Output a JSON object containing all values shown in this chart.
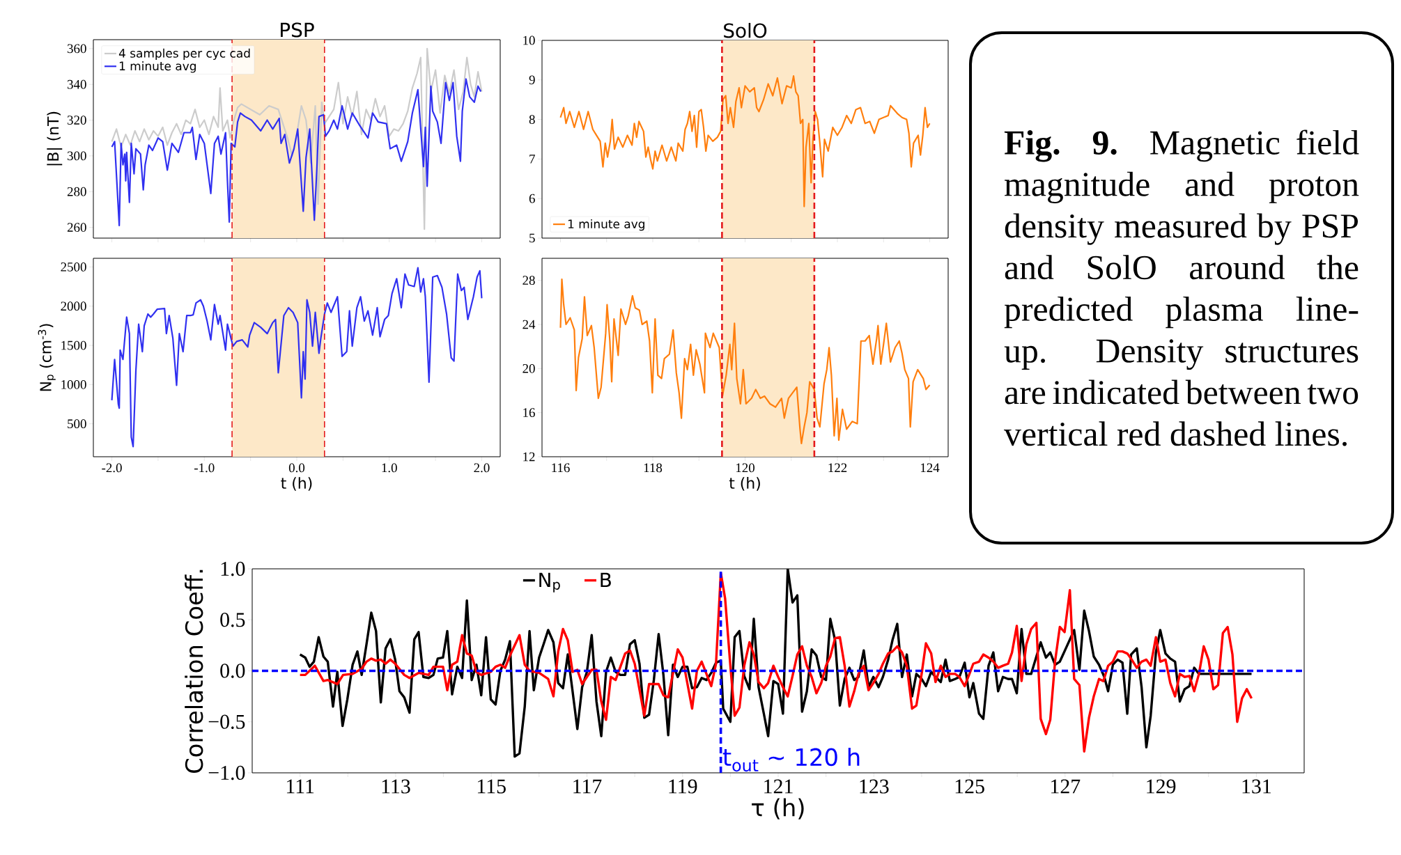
{
  "chart_data": [
    {
      "type": "line",
      "title": "PSP",
      "ylabel": "|B| (nT)",
      "xlim": [
        -2.2,
        2.2
      ],
      "ylim": [
        254,
        365
      ],
      "xticks": [
        -2,
        -1.5,
        -1,
        -0.5,
        0,
        0.5,
        1,
        1.5,
        2
      ],
      "yticks": [
        260,
        280,
        300,
        320,
        340,
        360
      ],
      "tick_labels": "y",
      "legend": "top left",
      "bands": [
        {
          "axis": "x",
          "from": -0.7,
          "to": 0.3,
          "color": "#fde8c8"
        }
      ],
      "ref_lines": [
        {
          "axis": "x",
          "value": -0.7,
          "color": "#e41a1c",
          "line_style": "dashed"
        },
        {
          "axis": "x",
          "value": 0.3,
          "color": "#e41a1c",
          "line_style": "dashed"
        }
      ],
      "series": [
        {
          "name": "4 samples per cyc cad",
          "color": "#cccccc",
          "x": [
            -2.0,
            -1.95,
            -1.9,
            -1.85,
            -1.8,
            -1.75,
            -1.7,
            -1.65,
            -1.6,
            -1.55,
            -1.5,
            -1.45,
            -1.4,
            -1.35,
            -1.3,
            -1.25,
            -1.2,
            -1.15,
            -1.1,
            -1.05,
            -1.0,
            -0.95,
            -0.9,
            -0.85,
            -0.83,
            -0.8,
            -0.75,
            -0.72,
            -0.68,
            -0.64,
            -0.6,
            -0.5,
            -0.4,
            -0.3,
            -0.2,
            -0.1,
            -0.05,
            0.0,
            0.05,
            0.1,
            0.15,
            0.2,
            0.23,
            0.27,
            0.3,
            0.35,
            0.4,
            0.45,
            0.5,
            0.55,
            0.6,
            0.65,
            0.7,
            0.75,
            0.8,
            0.85,
            0.9,
            0.95,
            1.0,
            1.05,
            1.1,
            1.15,
            1.2,
            1.25,
            1.3,
            1.34,
            1.38,
            1.41,
            1.45,
            1.5,
            1.55,
            1.6,
            1.65,
            1.7,
            1.75,
            1.8,
            1.84,
            1.88,
            1.92,
            1.96,
            2.0
          ],
          "values": [
            308,
            315,
            305,
            312,
            306,
            314,
            308,
            315,
            309,
            314,
            311,
            316,
            306,
            313,
            318,
            312,
            320,
            318,
            326,
            316,
            320,
            312,
            322,
            316,
            338,
            314,
            320,
            310,
            320,
            327,
            329,
            326,
            323,
            328,
            326,
            310,
            300,
            312,
            328,
            320,
            296,
            328,
            273,
            330,
            318,
            322,
            326,
            341,
            318,
            333,
            322,
            336,
            312,
            326,
            320,
            332,
            322,
            328,
            311,
            315,
            314,
            318,
            325,
            338,
            346,
            355,
            259,
            360,
            336,
            348,
            324,
            345,
            335,
            348,
            326,
            336,
            355,
            340,
            333,
            347,
            336
          ]
        },
        {
          "name": "1 minute avg",
          "color": "#3030f0",
          "x": [
            -2.0,
            -1.97,
            -1.92,
            -1.9,
            -1.88,
            -1.86,
            -1.85,
            -1.84,
            -1.81,
            -1.79,
            -1.76,
            -1.74,
            -1.69,
            -1.66,
            -1.64,
            -1.6,
            -1.56,
            -1.5,
            -1.45,
            -1.4,
            -1.35,
            -1.28,
            -1.22,
            -1.15,
            -1.13,
            -1.09,
            -1.05,
            -1.0,
            -0.93,
            -0.89,
            -0.85,
            -0.82,
            -0.77,
            -0.75,
            -0.73,
            -0.71,
            -0.67,
            -0.64,
            -0.61,
            -0.56,
            -0.49,
            -0.39,
            -0.32,
            -0.26,
            -0.19,
            -0.17,
            -0.13,
            -0.08,
            -0.03,
            0.01,
            0.07,
            0.1,
            0.14,
            0.19,
            0.22,
            0.24,
            0.29,
            0.31,
            0.35,
            0.4,
            0.44,
            0.49,
            0.55,
            0.6,
            0.68,
            0.77,
            0.82,
            0.88,
            0.97,
            1.01,
            1.08,
            1.13,
            1.2,
            1.25,
            1.31,
            1.37,
            1.39,
            1.41,
            1.45,
            1.47,
            1.52,
            1.56,
            1.61,
            1.65,
            1.69,
            1.73,
            1.77,
            1.79,
            1.83,
            1.87,
            1.92,
            1.96,
            1.99
          ],
          "values": [
            305,
            308,
            261,
            307,
            295,
            301,
            286,
            302,
            274,
            307,
            290,
            304,
            301,
            281,
            295,
            306,
            303,
            310,
            308,
            292,
            307,
            302,
            313,
            313,
            316,
            298,
            312,
            307,
            279,
            307,
            311,
            301,
            313,
            286,
            263,
            307,
            305,
            319,
            324,
            322,
            320,
            314,
            320,
            315,
            321,
            307,
            312,
            296,
            304,
            315,
            269,
            299,
            315,
            264,
            296,
            322,
            323,
            311,
            314,
            320,
            315,
            328,
            315,
            324,
            317,
            310,
            324,
            319,
            318,
            304,
            306,
            297,
            308,
            324,
            337,
            294,
            316,
            283,
            339,
            325,
            319,
            307,
            341,
            331,
            341,
            311,
            297,
            325,
            343,
            333,
            330,
            339,
            336
          ]
        }
      ]
    },
    {
      "type": "line",
      "title": "SolO",
      "xlim": [
        115.6,
        124.4
      ],
      "ylim": [
        5,
        10
      ],
      "xticks": [
        116,
        117,
        118,
        119,
        120,
        121,
        122,
        123,
        124
      ],
      "yticks": [
        5,
        6,
        7,
        8,
        9,
        10
      ],
      "tick_labels": "y",
      "legend": "bottom left",
      "bands": [
        {
          "axis": "x",
          "from": 119.5,
          "to": 121.5,
          "color": "#fde8c8"
        }
      ],
      "ref_lines": [
        {
          "axis": "x",
          "value": 119.5,
          "color": "#e41a1c",
          "line_style": "dashed"
        },
        {
          "axis": "x",
          "value": 121.5,
          "color": "#e41a1c",
          "line_style": "dashed"
        }
      ],
      "series": [
        {
          "name": "1 minute avg",
          "color": "#ff7f0e",
          "x": [
            116.0,
            116.07,
            116.12,
            116.2,
            116.3,
            116.4,
            116.5,
            116.6,
            116.7,
            116.78,
            116.86,
            116.92,
            116.97,
            117.02,
            117.08,
            117.12,
            117.17,
            117.25,
            117.35,
            117.45,
            117.55,
            117.6,
            117.65,
            117.7,
            117.8,
            117.85,
            117.9,
            117.95,
            118.0,
            118.05,
            118.1,
            118.2,
            118.3,
            118.4,
            118.5,
            118.55,
            118.65,
            118.7,
            118.75,
            118.8,
            118.85,
            118.9,
            118.95,
            119.0,
            119.05,
            119.1,
            119.15,
            119.2,
            119.3,
            119.4,
            119.47,
            119.52,
            119.58,
            119.63,
            119.68,
            119.75,
            119.8,
            119.87,
            119.92,
            120.0,
            120.1,
            120.2,
            120.25,
            120.3,
            120.4,
            120.5,
            120.6,
            120.7,
            120.8,
            120.9,
            121.0,
            121.05,
            121.1,
            121.15,
            121.2,
            121.25,
            121.28,
            121.32,
            121.38,
            121.43,
            121.47,
            121.52,
            121.57,
            121.62,
            121.68,
            121.72,
            121.8,
            121.9,
            122.0,
            122.1,
            122.2,
            122.3,
            122.4,
            122.5,
            122.6,
            122.7,
            122.8,
            122.9,
            123.0,
            123.1,
            123.15,
            123.3,
            123.4,
            123.5,
            123.55,
            123.6,
            123.65,
            123.75,
            123.8,
            123.85,
            123.9,
            123.95,
            124.0
          ],
          "values": [
            8.05,
            8.3,
            7.9,
            8.2,
            7.8,
            8.2,
            7.75,
            8.2,
            7.75,
            7.6,
            7.45,
            6.8,
            7.4,
            7.05,
            7.45,
            8.0,
            7.25,
            7.55,
            7.3,
            7.6,
            7.35,
            7.9,
            7.55,
            7.95,
            7.7,
            7.05,
            7.3,
            7.0,
            6.75,
            7.2,
            6.95,
            7.35,
            6.95,
            7.3,
            6.95,
            7.4,
            7.2,
            7.75,
            7.9,
            8.2,
            7.7,
            8.1,
            7.3,
            8.2,
            8.25,
            7.8,
            7.2,
            7.6,
            7.45,
            7.55,
            7.7,
            8.5,
            8.6,
            7.9,
            8.3,
            7.8,
            8.45,
            8.8,
            8.3,
            8.85,
            8.7,
            8.8,
            8.3,
            8.2,
            8.5,
            8.9,
            8.6,
            9.05,
            8.4,
            8.85,
            8.8,
            9.1,
            8.7,
            8.6,
            7.9,
            8.0,
            5.8,
            7.3,
            7.9,
            6.4,
            7.5,
            8.2,
            8.0,
            7.4,
            6.55,
            7.5,
            7.2,
            7.8,
            7.6,
            7.8,
            8.1,
            7.9,
            8.25,
            8.3,
            7.9,
            7.95,
            7.65,
            8.0,
            8.05,
            8.1,
            8.35,
            8.15,
            8.05,
            8.0,
            7.65,
            6.8,
            7.4,
            7.6,
            7.1,
            7.6,
            8.3,
            7.8,
            7.9
          ]
        }
      ]
    },
    {
      "type": "line",
      "xlabel": "t (h)",
      "ylabel": "N$_{p}$ (cm$^{-3}$)",
      "xlim": [
        -2.2,
        2.2
      ],
      "ylim": [
        80,
        2610
      ],
      "xticks": [
        {
          "value": -2,
          "label": "-2.0"
        },
        {
          "value": -1.5,
          "label": null
        },
        {
          "value": -1,
          "label": "-1.0"
        },
        {
          "value": -0.5,
          "label": null
        },
        {
          "value": 0,
          "label": "0.0"
        },
        {
          "value": 0.5,
          "label": null
        },
        {
          "value": 1,
          "label": "1.0"
        },
        {
          "value": 1.5,
          "label": null
        },
        {
          "value": 2,
          "label": "2.0"
        }
      ],
      "yticks": [
        500,
        1000,
        1500,
        2000,
        2500
      ],
      "bands": [
        {
          "axis": "x",
          "from": -0.7,
          "to": 0.3,
          "color": "#fde8c8"
        }
      ],
      "ref_lines": [
        {
          "axis": "x",
          "value": -0.7,
          "color": "#e41a1c",
          "line_style": "dashed"
        },
        {
          "axis": "x",
          "value": 0.3,
          "color": "#e41a1c",
          "line_style": "dashed"
        }
      ],
      "series": [
        {
          "color": "#3030f0",
          "x": [
            -2.0,
            -1.97,
            -1.93,
            -1.92,
            -1.91,
            -1.88,
            -1.84,
            -1.81,
            -1.79,
            -1.77,
            -1.74,
            -1.71,
            -1.67,
            -1.65,
            -1.61,
            -1.58,
            -1.55,
            -1.51,
            -1.43,
            -1.41,
            -1.38,
            -1.34,
            -1.3,
            -1.27,
            -1.23,
            -1.19,
            -1.15,
            -1.12,
            -1.09,
            -1.04,
            -1.01,
            -0.97,
            -0.93,
            -0.89,
            -0.85,
            -0.83,
            -0.77,
            -0.75,
            -0.72,
            -0.69,
            -0.65,
            -0.59,
            -0.53,
            -0.51,
            -0.46,
            -0.39,
            -0.32,
            -0.26,
            -0.23,
            -0.2,
            -0.14,
            -0.09,
            -0.04,
            0.01,
            0.05,
            0.07,
            0.09,
            0.11,
            0.14,
            0.17,
            0.2,
            0.24,
            0.26,
            0.3,
            0.33,
            0.37,
            0.44,
            0.49,
            0.54,
            0.57,
            0.6,
            0.65,
            0.69,
            0.73,
            0.77,
            0.82,
            0.87,
            0.9,
            0.95,
            0.99,
            1.03,
            1.08,
            1.13,
            1.17,
            1.21,
            1.27,
            1.31,
            1.34,
            1.37,
            1.39,
            1.43,
            1.47,
            1.52,
            1.57,
            1.62,
            1.67,
            1.7,
            1.74,
            1.78,
            1.81,
            1.85,
            1.91,
            1.95,
            1.98,
            2.0
          ],
          "values": [
            800,
            1320,
            750,
            700,
            1440,
            1320,
            1860,
            1650,
            330,
            210,
            1180,
            1770,
            1420,
            1750,
            1900,
            1860,
            1900,
            1960,
            1970,
            1650,
            1880,
            1590,
            990,
            1650,
            1420,
            1880,
            1880,
            1890,
            2040,
            2080,
            2000,
            1810,
            1570,
            2020,
            1770,
            1880,
            1440,
            1770,
            1630,
            1490,
            1550,
            1570,
            1480,
            1630,
            1790,
            1730,
            1650,
            1790,
            1830,
            1150,
            1880,
            1980,
            1920,
            1790,
            830,
            1420,
            1070,
            2080,
            1920,
            1490,
            1920,
            1400,
            1590,
            1900,
            2040,
            1920,
            2120,
            1360,
            1420,
            1940,
            1490,
            1980,
            2120,
            1810,
            1940,
            1630,
            1980,
            1610,
            1830,
            1880,
            2160,
            2350,
            1980,
            2410,
            2270,
            2250,
            2490,
            2180,
            2350,
            2120,
            1030,
            2370,
            2390,
            2240,
            1900,
            1340,
            1300,
            2410,
            2200,
            2240,
            1830,
            2120,
            2370,
            2450,
            2100
          ]
        }
      ]
    },
    {
      "type": "line",
      "xlabel": "t (h)",
      "xlim": [
        115.6,
        124.4
      ],
      "ylim": [
        12,
        30
      ],
      "xticks": [
        116,
        {
          "value": 117,
          "label": null
        },
        118,
        {
          "value": 119,
          "label": null
        },
        120,
        {
          "value": 121,
          "label": null
        },
        122,
        {
          "value": 123,
          "label": null
        },
        124
      ],
      "yticks": [
        12,
        16,
        20,
        24,
        28
      ],
      "bands": [
        {
          "axis": "x",
          "from": 119.5,
          "to": 121.5,
          "color": "#fde8c8"
        }
      ],
      "ref_lines": [
        {
          "axis": "x",
          "value": 119.5,
          "color": "#e41a1c",
          "line_style": "dashed"
        },
        {
          "axis": "x",
          "value": 121.5,
          "color": "#e41a1c",
          "line_style": "dashed"
        }
      ],
      "series": [
        {
          "color": "#ff7f0e",
          "x": [
            116.0,
            116.03,
            116.07,
            116.12,
            116.21,
            116.3,
            116.34,
            116.39,
            116.47,
            116.52,
            116.58,
            116.67,
            116.73,
            116.82,
            116.88,
            116.98,
            117.01,
            117.07,
            117.11,
            117.16,
            117.25,
            117.31,
            117.41,
            117.47,
            117.56,
            117.62,
            117.71,
            117.77,
            117.87,
            117.93,
            117.99,
            118.05,
            118.11,
            118.19,
            118.25,
            118.36,
            118.44,
            118.51,
            118.57,
            118.62,
            118.69,
            118.75,
            118.82,
            118.88,
            118.94,
            119.02,
            119.12,
            119.14,
            119.24,
            119.31,
            119.44,
            119.51,
            119.59,
            119.67,
            119.71,
            119.77,
            119.82,
            119.9,
            119.96,
            120.02,
            120.14,
            120.23,
            120.33,
            120.42,
            120.54,
            120.66,
            120.79,
            120.85,
            120.94,
            121.03,
            121.12,
            121.19,
            121.22,
            121.28,
            121.34,
            121.4,
            121.5,
            121.56,
            121.62,
            121.71,
            121.77,
            121.82,
            121.87,
            121.93,
            121.99,
            122.03,
            122.11,
            122.2,
            122.32,
            122.43,
            122.51,
            122.6,
            122.69,
            122.77,
            122.85,
            122.88,
            122.94,
            123.0,
            123.06,
            123.15,
            123.25,
            123.34,
            123.4,
            123.46,
            123.54,
            123.58,
            123.64,
            123.74,
            123.86,
            123.92,
            124.0
          ],
          "values": [
            23.7,
            28.1,
            25.8,
            24.0,
            24.6,
            23.5,
            18.0,
            21.0,
            22.7,
            26.5,
            23.0,
            23.9,
            21.9,
            17.3,
            18.3,
            23.2,
            25.8,
            22.5,
            18.8,
            24.5,
            21.2,
            25.4,
            24.0,
            24.8,
            26.6,
            25.5,
            25.3,
            24.0,
            24.3,
            22.5,
            17.8,
            24.5,
            19.4,
            19.1,
            20.9,
            21.3,
            23.5,
            19.6,
            17.8,
            15.5,
            20.9,
            19.9,
            22.2,
            19.4,
            21.7,
            20.4,
            17.8,
            23.2,
            21.9,
            23.2,
            21.9,
            17.5,
            19.4,
            22.2,
            19.9,
            24.1,
            19.1,
            16.8,
            19.9,
            16.8,
            17.3,
            18.1,
            17.3,
            17.5,
            16.8,
            16.5,
            17.3,
            15.5,
            17.3,
            17.8,
            18.3,
            14.5,
            13.2,
            14.7,
            16.0,
            18.8,
            18.1,
            15.5,
            14.7,
            18.6,
            19.9,
            21.9,
            19.4,
            13.9,
            17.3,
            13.5,
            16.3,
            14.5,
            15.2,
            15.0,
            22.5,
            22.5,
            23.0,
            20.4,
            22.7,
            23.9,
            20.4,
            22.2,
            24.1,
            20.6,
            21.9,
            22.5,
            21.4,
            19.9,
            19.1,
            14.7,
            18.8,
            19.9,
            19.1,
            18.1,
            18.5
          ]
        }
      ]
    },
    {
      "type": "other",
      "annotations": [
        "**Fig. 9.** Magnetic field magnitude and proton density measured by PSP and SolO around the predicted plasma line-up. Density structures are indicated between two vertical red dashed lines."
      ]
    },
    {
      "type": "line",
      "xlabel": "τ (h)",
      "ylabel": "Correlation Coeff.",
      "xlim": [
        110,
        132
      ],
      "ylim": [
        -1,
        1
      ],
      "xticks": [
        111,
        {
          "value": 112,
          "label": null
        },
        113,
        {
          "value": 114,
          "label": null
        },
        115,
        {
          "value": 116,
          "label": null
        },
        117,
        {
          "value": 118,
          "label": null
        },
        119,
        {
          "value": 120,
          "label": null
        },
        121,
        {
          "value": 122,
          "label": null
        },
        123,
        {
          "value": 124,
          "label": null
        },
        125,
        {
          "value": 126,
          "label": null
        },
        127,
        {
          "value": 128,
          "label": null
        },
        129,
        {
          "value": 130,
          "label": null
        },
        131
      ],
      "yticks": [
        {
          "value": -1,
          "label": "−1.0"
        },
        {
          "value": -0.5,
          "label": "−0.5"
        },
        {
          "value": 0,
          "label": "0.0"
        },
        {
          "value": 0.5,
          "label": "0.5"
        },
        {
          "value": 1,
          "label": "1.0"
        }
      ],
      "legend": "top",
      "ref_lines": [
        {
          "axis": "y",
          "value": 0,
          "color": "#0000ff",
          "line_style": "dashed"
        },
        {
          "axis": "x",
          "value": 119.8,
          "color": "#0000ff",
          "line_style": "dashed"
        }
      ],
      "annotations": [
        {
          "text": "t$_{out}$ ∼ 120 h",
          "x": 119.8,
          "y": -0.93
        }
      ],
      "series": [
        {
          "name": "N$_{p}$",
          "color": "#000000",
          "x": [
            111.0,
            111.11,
            111.2,
            111.29,
            111.39,
            111.49,
            111.58,
            111.69,
            111.78,
            111.89,
            111.99,
            112.1,
            112.2,
            112.29,
            112.39,
            112.49,
            112.59,
            112.69,
            112.79,
            112.89,
            112.99,
            113.08,
            113.18,
            113.29,
            113.39,
            113.48,
            113.58,
            113.69,
            113.79,
            113.88,
            113.99,
            114.08,
            114.18,
            114.29,
            114.39,
            114.49,
            114.59,
            114.69,
            114.79,
            114.89,
            114.99,
            115.09,
            115.19,
            115.29,
            115.39,
            115.49,
            115.59,
            115.7,
            115.8,
            115.89,
            116.0,
            116.1,
            116.19,
            116.3,
            116.4,
            116.5,
            116.6,
            116.7,
            116.8,
            116.9,
            117.0,
            117.1,
            117.2,
            117.3,
            117.4,
            117.5,
            117.6,
            117.7,
            117.8,
            117.9,
            118.0,
            118.1,
            118.2,
            118.3,
            118.4,
            118.5,
            118.6,
            118.7,
            118.8,
            118.9,
            119.0,
            119.1,
            119.2,
            119.3,
            119.4,
            119.5,
            119.6,
            119.7,
            119.8,
            119.85,
            120.0,
            120.09,
            120.19,
            120.29,
            120.4,
            120.49,
            120.59,
            120.7,
            120.79,
            120.9,
            121.0,
            121.1,
            121.2,
            121.3,
            121.4,
            121.5,
            121.6,
            121.7,
            121.8,
            121.9,
            122.0,
            122.09,
            122.19,
            122.29,
            122.39,
            122.49,
            122.59,
            122.68,
            122.79,
            122.89,
            122.99,
            123.1,
            123.19,
            123.3,
            123.39,
            123.49,
            123.59,
            123.69,
            123.8,
            123.89,
            124.0,
            124.09,
            124.2,
            124.29,
            124.4,
            124.5,
            124.59,
            124.7,
            124.79,
            124.9,
            125.0,
            125.08,
            125.2,
            125.29,
            125.4,
            125.5,
            125.6,
            125.7,
            125.81,
            125.89,
            125.99,
            126.09,
            126.19,
            126.29,
            126.49,
            126.6,
            126.69,
            126.79,
            126.89,
            127.19,
            127.3,
            127.4,
            127.5,
            127.6,
            127.71,
            127.82,
            127.9,
            128.0,
            128.1,
            128.2,
            128.3,
            128.38,
            128.5,
            128.6,
            128.7,
            128.79,
            128.9,
            128.99,
            129.1,
            129.2,
            129.3,
            129.4,
            129.5,
            129.6,
            129.7,
            129.8,
            130.15,
            130.56,
            130.9
          ],
          "values": [
            0.16,
            0.13,
            0.04,
            0.09,
            0.33,
            0.14,
            0.09,
            -0.35,
            -0.01,
            -0.54,
            -0.28,
            0.06,
            0.19,
            -0.04,
            0.26,
            0.57,
            0.39,
            -0.31,
            0.22,
            0.31,
            0.11,
            -0.2,
            -0.26,
            -0.41,
            0.31,
            0.38,
            -0.06,
            -0.07,
            -0.04,
            0.12,
            0.13,
            0.39,
            -0.23,
            0.04,
            -0.07,
            0.69,
            -0.09,
            0.06,
            -0.24,
            0.33,
            -0.28,
            -0.33,
            0.0,
            0.11,
            0.29,
            -0.84,
            -0.81,
            -0.35,
            0.39,
            -0.19,
            0.13,
            0.27,
            0.4,
            0.28,
            -0.12,
            -0.17,
            0.16,
            -0.2,
            -0.57,
            -0.16,
            -0.01,
            0.35,
            -0.3,
            -0.64,
            -0.01,
            0.13,
            -0.01,
            -0.04,
            -0.04,
            0.26,
            0.3,
            0.07,
            -0.46,
            -0.43,
            -0.09,
            0.36,
            -0.04,
            -0.63,
            0.06,
            -0.06,
            0.04,
            0.04,
            -0.17,
            -0.16,
            -0.07,
            -0.09,
            -0.02,
            0.08,
            0.1,
            -0.37,
            -0.5,
            0.33,
            0.39,
            -0.05,
            -0.18,
            0.51,
            -0.16,
            -0.42,
            -0.64,
            -0.1,
            -0.13,
            -0.42,
            1.0,
            0.67,
            0.74,
            -0.4,
            -0.2,
            0.21,
            0.15,
            -0.06,
            -0.09,
            0.51,
            0.3,
            -0.34,
            -0.08,
            0.03,
            -0.09,
            -0.06,
            0.2,
            -0.16,
            -0.06,
            -0.16,
            -0.06,
            0.11,
            0.3,
            0.46,
            -0.06,
            0.16,
            -0.25,
            -0.03,
            -0.08,
            -0.15,
            -0.01,
            -0.06,
            -0.11,
            0.11,
            -0.1,
            -0.08,
            -0.06,
            0.08,
            -0.26,
            -0.12,
            -0.42,
            -0.47,
            0.05,
            0.18,
            -0.2,
            -0.06,
            -0.08,
            -0.08,
            -0.22,
            0.41,
            -0.03,
            -0.03,
            0.28,
            0.13,
            0.18,
            0.06,
            0.09,
            0.4,
            0.01,
            0.59,
            0.39,
            0.14,
            0.06,
            -0.06,
            -0.2,
            0.06,
            0.11,
            0.08,
            -0.42,
            0.16,
            0.22,
            -0.16,
            -0.75,
            -0.44,
            0.18,
            0.4,
            0.17,
            0.12,
            0.09,
            -0.3,
            -0.18,
            -0.15,
            0.03,
            -0.03,
            -0.03,
            -0.03,
            -0.03
          ]
        },
        {
          "name": "B",
          "color": "#ff0000",
          "x": [
            111.0,
            111.11,
            111.31,
            111.49,
            111.58,
            111.78,
            111.9,
            112.1,
            112.29,
            112.39,
            112.49,
            112.59,
            112.69,
            112.79,
            112.89,
            112.99,
            113.18,
            113.29,
            113.48,
            113.69,
            113.79,
            113.99,
            114.08,
            114.18,
            114.29,
            114.39,
            114.49,
            114.59,
            114.69,
            114.79,
            114.99,
            115.09,
            115.19,
            115.29,
            115.39,
            115.59,
            115.7,
            115.8,
            116.0,
            116.19,
            116.3,
            116.4,
            116.5,
            116.6,
            116.7,
            116.8,
            116.9,
            117.1,
            117.2,
            117.3,
            117.4,
            117.5,
            117.6,
            117.8,
            117.9,
            118.0,
            118.2,
            118.3,
            118.5,
            118.6,
            118.7,
            118.9,
            119.0,
            119.2,
            119.3,
            119.4,
            119.6,
            119.7,
            119.8,
            119.89,
            120.0,
            120.09,
            120.19,
            120.29,
            120.4,
            120.49,
            120.59,
            120.7,
            120.79,
            120.9,
            121.0,
            121.1,
            121.2,
            121.3,
            121.4,
            121.5,
            121.6,
            121.7,
            121.8,
            121.9,
            122.0,
            122.09,
            122.19,
            122.29,
            122.39,
            122.49,
            122.59,
            122.68,
            122.79,
            122.89,
            122.99,
            123.1,
            123.19,
            123.3,
            123.39,
            123.49,
            123.59,
            123.69,
            123.8,
            123.89,
            124.0,
            124.09,
            124.2,
            124.29,
            124.4,
            124.5,
            124.59,
            124.7,
            124.79,
            124.9,
            125.0,
            125.08,
            125.2,
            125.29,
            125.4,
            125.5,
            125.6,
            125.7,
            125.81,
            125.89,
            125.99,
            126.09,
            126.19,
            126.29,
            126.4,
            126.49,
            126.6,
            126.69,
            126.79,
            126.89,
            126.99,
            127.1,
            127.19,
            127.3,
            127.4,
            127.5,
            127.6,
            127.71,
            127.8,
            127.9,
            128.0,
            128.1,
            128.2,
            128.3,
            128.38,
            128.5,
            128.6,
            128.7,
            128.79,
            128.9,
            128.99,
            129.1,
            129.2,
            129.3,
            129.4,
            129.5,
            129.6,
            129.7,
            129.8,
            129.9,
            130.0,
            130.1,
            130.2,
            130.3,
            130.4,
            130.5,
            130.6,
            130.7,
            130.8,
            130.9
          ],
          "values": [
            -0.04,
            -0.04,
            0.05,
            -0.1,
            -0.09,
            -0.13,
            -0.04,
            -0.03,
            0.02,
            0.09,
            0.12,
            0.1,
            0.11,
            0.07,
            0.11,
            0.07,
            -0.04,
            -0.07,
            -0.02,
            -0.04,
            0.04,
            0.04,
            -0.19,
            0.06,
            0.09,
            0.35,
            0.17,
            0.15,
            -0.01,
            -0.04,
            -0.01,
            0.04,
            0.06,
            0.03,
            0.15,
            0.35,
            0.06,
            0.0,
            -0.02,
            -0.08,
            -0.25,
            0.19,
            0.41,
            0.3,
            -0.01,
            0.01,
            -0.13,
            0.01,
            0.01,
            -0.3,
            -0.48,
            -0.06,
            -0.09,
            0.17,
            0.2,
            0.07,
            -0.44,
            -0.13,
            -0.13,
            -0.24,
            -0.26,
            0.21,
            0.13,
            -0.37,
            0.0,
            0.09,
            -0.15,
            0.07,
            0.96,
            0.71,
            0.05,
            -0.44,
            -0.36,
            0.05,
            0.28,
            0.16,
            -0.11,
            -0.17,
            -0.12,
            0.05,
            -0.06,
            -0.16,
            -0.25,
            -0.05,
            0.16,
            0.24,
            0.05,
            -0.06,
            -0.22,
            -0.12,
            0.05,
            0.14,
            0.32,
            0.33,
            0.05,
            -0.35,
            -0.2,
            -0.03,
            0.05,
            -0.19,
            -0.12,
            -0.03,
            0.07,
            0.17,
            0.19,
            0.24,
            0.18,
            0.05,
            -0.37,
            -0.34,
            -0.03,
            0.27,
            0.17,
            -0.11,
            0.05,
            -0.06,
            -0.03,
            -0.03,
            -0.06,
            -0.15,
            -0.03,
            0.07,
            0.09,
            0.16,
            0.13,
            0.09,
            0.03,
            0.05,
            0.07,
            0.18,
            0.44,
            -0.1,
            0.26,
            0.41,
            0.47,
            -0.47,
            -0.62,
            -0.48,
            0.09,
            0.43,
            0.38,
            0.79,
            -0.08,
            -0.14,
            -0.79,
            -0.46,
            -0.25,
            -0.08,
            -0.1,
            0.05,
            0.09,
            0.19,
            0.19,
            0.17,
            0.12,
            0.03,
            0.09,
            0.11,
            0.05,
            0.33,
            0.09,
            0.11,
            -0.12,
            -0.25,
            -0.03,
            -0.06,
            -0.05,
            -0.2,
            -0.03,
            0.24,
            0.11,
            -0.18,
            -0.14,
            0.37,
            0.43,
            0.16,
            -0.5,
            -0.27,
            -0.18,
            -0.27
          ]
        }
      ]
    }
  ]
}
